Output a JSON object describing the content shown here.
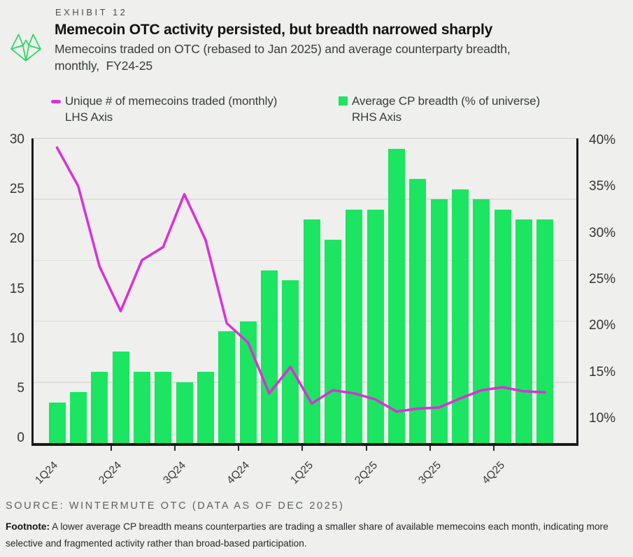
{
  "header": {
    "exhibit_label": "EXHIBIT 12",
    "title": "Memecoin OTC activity persisted, but breadth narrowed sharply",
    "subtitle_line1": "Memecoins traded on OTC (rebased to Jan 2025) and average counterparty breadth,",
    "subtitle_line2": "monthly,  FY24-25"
  },
  "legend": {
    "line_series": {
      "label": "Unique # of memecoins traded (monthly)",
      "sublabel": "LHS Axis",
      "color": "#DB2FD8"
    },
    "bar_series": {
      "label": "Average CP breadth (% of universe)",
      "sublabel": "RHS Axis",
      "color": "#1BE561"
    }
  },
  "footer": {
    "source": "SOURCE: WINTERMUTE OTC (DATA AS OF DEC 2025)",
    "footnote_label": "Footnote:",
    "footnote_text": " A lower average CP breadth means counterparties are trading a smaller share of available memecoins each month, indicating more selective and fragmented activity rather than broad-based participation."
  },
  "chart_data": {
    "type": "bar+line dual-axis, monthly",
    "title": "Memecoins traded on OTC (rebased to Jan 2025) and average counterparty breadth, monthly, FY24-25",
    "x_months": [
      "Jan 2024",
      "Feb 2024",
      "Mar 2024",
      "Apr 2024",
      "May 2024",
      "Jun 2024",
      "Jul 2024",
      "Aug 2024",
      "Sep 2024",
      "Oct 2024",
      "Nov 2024",
      "Dec 2024",
      "Jan 2025",
      "Feb 2025",
      "Mar 2025",
      "Apr 2025",
      "May 2025",
      "Jun 2025",
      "Jul 2025",
      "Aug 2025",
      "Sep 2025",
      "Oct 2025",
      "Nov 2025",
      "Dec 2025"
    ],
    "x_tick_labels": [
      "1Q24",
      "2Q24",
      "3Q24",
      "4Q24",
      "1Q25",
      "2Q25",
      "3Q25",
      "4Q25"
    ],
    "series": [
      {
        "name": "Unique # of memecoins traded (monthly)",
        "type": "line",
        "axis": "LHS",
        "color": "#DB2FD8",
        "values": [
          29.1,
          25.3,
          17.4,
          13.0,
          18.0,
          19.3,
          24.5,
          20.0,
          11.8,
          9.9,
          4.9,
          7.5,
          3.9,
          5.2,
          4.9,
          4.3,
          3.1,
          3.4,
          3.5,
          4.4,
          5.2,
          5.5,
          5.1,
          5.0
        ]
      },
      {
        "name": "Average CP breadth (% of universe)",
        "type": "bar",
        "axis": "RHS",
        "unit": "%",
        "color": "#1BE561",
        "values": [
          14,
          15,
          17,
          19,
          17,
          17,
          16,
          17,
          21,
          22,
          27,
          26,
          32,
          30,
          33,
          33,
          39,
          36,
          34,
          35,
          34,
          33,
          32,
          32
        ]
      }
    ],
    "left_axis": {
      "label": "LHS Axis",
      "min": 0,
      "max": 30,
      "ticks": [
        30,
        25,
        20,
        15,
        10,
        5,
        0
      ]
    },
    "right_axis": {
      "label": "RHS Axis",
      "min": 10,
      "max": 40,
      "ticks": [
        "40%",
        "35%",
        "30%",
        "25%",
        "20%",
        "15%",
        "10%"
      ],
      "tick_values": [
        40,
        35,
        30,
        25,
        20,
        15,
        10
      ]
    },
    "grid": "horizontal gridlines every 6 LHS units (6,12,18,24,30)",
    "legend_position": "top"
  }
}
